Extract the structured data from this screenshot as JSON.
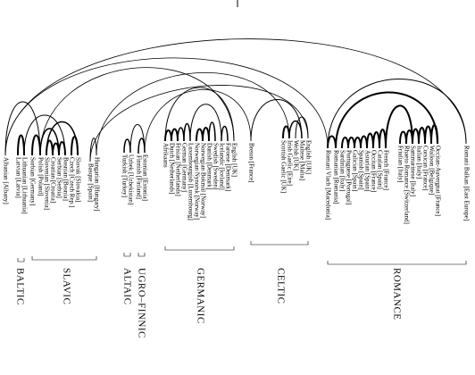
{
  "leaves": [
    "Albanian [Albany]",
    "Latvian [Latvia]",
    "Lithuanian [Lithuania]",
    "Sorbian [Germany]",
    "Polish [Poland]",
    "Slovenian [Slovenia]",
    "Croatian [Croatia]",
    "Serbian [Serbia]",
    "Bosnian [Bosnia]",
    "Czech [Czech Rep.]",
    "Slovak [Slovakia]",
    "Basque [Spain]",
    "Hungarian [Hungary]",
    "Turkish [Turkey]",
    "Uzbek [Uzbekistan]",
    "Finnish [Finland]",
    "Estonian [Estonia]",
    "Afrikaans",
    "Dutch [Netherlands]",
    "Frisian [Netherlands]",
    "German [Germany]",
    "Luxembourgish [Luxembourg]",
    "Norwegian Nynorsk [Norway]",
    "Norwegian Bokmål [Norway]",
    "Danish [Denmark]",
    "Swedish [Sweden]",
    "Icelandic [Iceland]",
    "Faroese [Denmark]",
    "English [UK]",
    "Breton [France]",
    "Scottish Gaelic [UK]",
    "Irish Gaelic [Eire]",
    "Welsh [UK]",
    "Maltese [Malta]",
    "English [UK]",
    "Romani Vlach [Macedonia]",
    "Romanian [Romania]",
    "Sardinian [Italy]",
    "Portuguese [Portugal]",
    "Galician [Spain]",
    "Spanish [Spain]",
    "Asturian [Spain]",
    "Occitan [France]",
    "Catalan [Spain]",
    "French [France]",
    "Friulian [Italy]",
    "Rhaeto Romance [Switzerland]",
    "Sammarinese [Italy]",
    "Italian [Italy]",
    "Corsican [France]",
    "Walloon [Belgique]",
    "Occitan-Auvergnat [France]",
    "Romani Balkan [East Europe]"
  ],
  "groups": [
    {
      "name": "BALTIC"
    },
    {
      "name": "SLAVIC"
    },
    {
      "name": "ALTAIC"
    },
    {
      "name": "UGRO–FINNIC"
    },
    {
      "name": "GERMANIC"
    },
    {
      "name": "CELTIC"
    },
    {
      "name": "ROMANCE"
    }
  ]
}
